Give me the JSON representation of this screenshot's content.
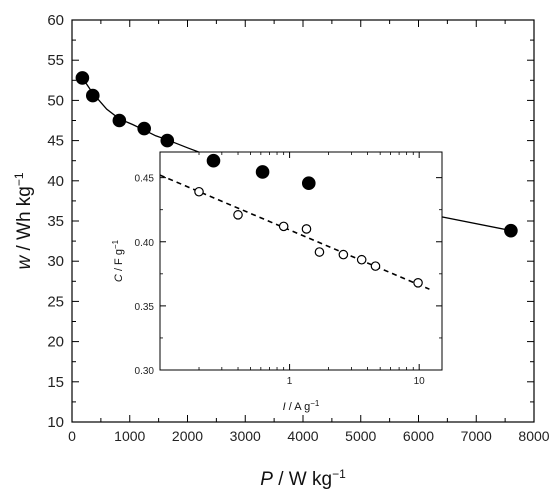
{
  "chart_data": [
    {
      "type": "scatter",
      "role": "main",
      "xlabel_var": "P",
      "xlabel_unit": " / W kg",
      "xlabel_exp": "−1",
      "ylabel_var": "w",
      "ylabel_unit": " / Wh kg",
      "ylabel_exp": "−1",
      "xlim": [
        0,
        8000
      ],
      "ylim": [
        10,
        60
      ],
      "xticks": [
        0,
        1000,
        2000,
        3000,
        4000,
        5000,
        6000,
        7000,
        8000
      ],
      "yticks": [
        10,
        15,
        20,
        25,
        30,
        35,
        40,
        45,
        50,
        55,
        60
      ],
      "marker": "filled-circle",
      "line_style": "solid",
      "color": "#000000",
      "series": [
        {
          "x": [
            180,
            360,
            820,
            1250,
            1650,
            2450,
            3300,
            4100,
            7600
          ],
          "y": [
            52.8,
            50.6,
            47.5,
            46.5,
            45.0,
            42.5,
            41.1,
            39.7,
            33.8
          ]
        }
      ],
      "fit_line": {
        "x": [
          180,
          360,
          600,
          820,
          1050,
          1250,
          1450,
          1650,
          2000,
          2450,
          3300,
          4100,
          5000,
          6000,
          7600
        ],
        "y": [
          52.8,
          50.9,
          48.9,
          47.7,
          47.0,
          46.3,
          45.6,
          45.1,
          44.1,
          42.9,
          41.1,
          39.7,
          37.9,
          36.1,
          33.8
        ]
      }
    },
    {
      "type": "scatter",
      "role": "inset",
      "xscale": "log",
      "xlabel_var": "I",
      "xlabel_unit": " / A g",
      "xlabel_exp": "−1",
      "ylabel_var": "C",
      "ylabel_unit": " / F g",
      "ylabel_exp": "−1",
      "xlim": [
        0.1,
        15
      ],
      "ylim": [
        0.3,
        0.47
      ],
      "xticks": [
        1,
        10
      ],
      "xtick_labels": [
        "1",
        "10"
      ],
      "yticks": [
        0.3,
        0.35,
        0.4,
        0.45
      ],
      "ytick_labels": [
        "0.30",
        "0.35",
        "0.40",
        "0.45"
      ],
      "marker": "open-circle",
      "line_style": "dashed",
      "color": "#000000",
      "series": [
        {
          "x": [
            0.2,
            0.4,
            0.9,
            1.35,
            1.7,
            2.6,
            3.6,
            4.6,
            9.8
          ],
          "y": [
            0.439,
            0.421,
            0.412,
            0.41,
            0.392,
            0.39,
            0.386,
            0.381,
            0.368
          ]
        }
      ],
      "fit_line": {
        "x": [
          0.1,
          12
        ],
        "y": [
          0.452,
          0.363
        ]
      }
    }
  ]
}
